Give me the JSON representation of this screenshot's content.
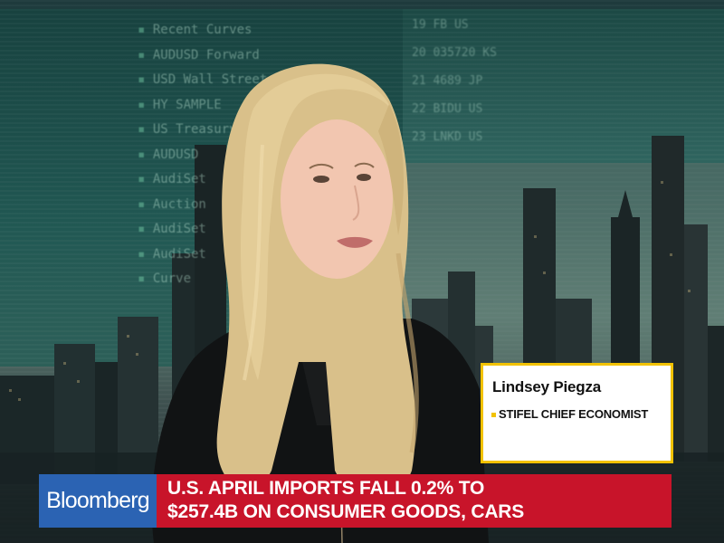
{
  "broadcast": {
    "brand": "Bloomberg",
    "headline_line1": "U.S. APRIL IMPORTS FALL 0.2% TO",
    "headline_line2": "$257.4B ON CONSUMER GOODS, CARS"
  },
  "guest": {
    "name": "Lindsey Piegza",
    "title": "STIFEL CHIEF ECONOMIST"
  },
  "colors": {
    "brand_blue": "#2b63b3",
    "headline_red": "#c8142a",
    "card_border_yellow": "#f2c200"
  }
}
